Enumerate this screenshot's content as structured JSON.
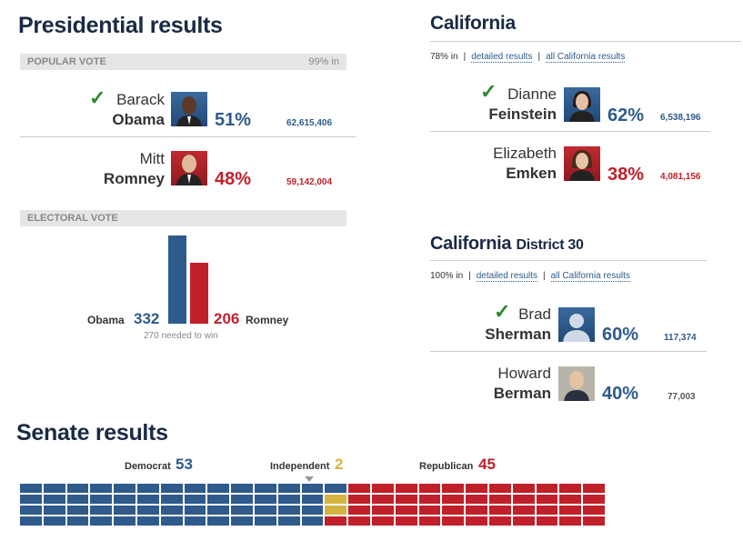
{
  "presidential": {
    "title": "Presidential results",
    "popular_header": "POPULAR VOTE",
    "reporting": "99% in",
    "candidates": [
      {
        "first": "Barack",
        "last": "Obama",
        "pct": "51%",
        "votes": "62,615,406",
        "winner": true
      },
      {
        "first": "Mitt",
        "last": "Romney",
        "pct": "48%",
        "votes": "59,142,004",
        "winner": false
      }
    ],
    "electoral_header": "ELECTORAL VOTE",
    "electoral": {
      "obama_label": "Obama",
      "obama_votes": "332",
      "romney_label": "Romney",
      "romney_votes": "206",
      "note": "270 needed to win"
    }
  },
  "california": {
    "title": "California",
    "reporting": "78% in",
    "link1": "detailed results",
    "link2": "all California results",
    "candidates": [
      {
        "first": "Dianne",
        "last": "Feinstein",
        "pct": "62%",
        "votes": "6,538,196",
        "winner": true
      },
      {
        "first": "Elizabeth",
        "last": "Emken",
        "pct": "38%",
        "votes": "4,081,156",
        "winner": false
      }
    ]
  },
  "district": {
    "title": "California",
    "subtitle": "District 30",
    "reporting": "100% in",
    "link1": "detailed results",
    "link2": "all California results",
    "candidates": [
      {
        "first": "Brad",
        "last": "Sherman",
        "pct": "60%",
        "votes": "117,374",
        "winner": true
      },
      {
        "first": "Howard",
        "last": "Berman",
        "pct": "40%",
        "votes": "77,003",
        "winner": false
      }
    ]
  },
  "senate": {
    "title": "Senate results",
    "democrat_label": "Democrat",
    "democrat_count": "53",
    "independent_label": "Independent",
    "independent_count": "2",
    "republican_label": "Republican",
    "republican_count": "45"
  },
  "colors": {
    "blue": "#2e5a8c",
    "red": "#c0202a",
    "gold": "#d4b440",
    "check": "#2a8a2a"
  },
  "icons": {
    "winner": "check-mark-icon",
    "placeholder": "person-silhouette-icon"
  }
}
